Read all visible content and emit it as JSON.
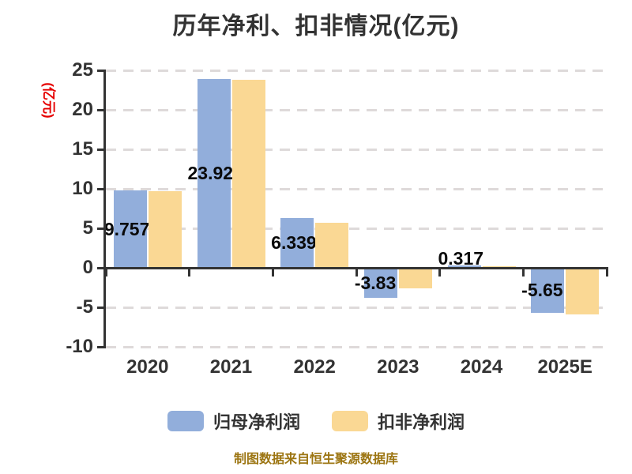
{
  "title": "历年净利、扣非情况(亿元)",
  "y_axis_label": "(亿元)",
  "footer": "制图数据来自恒生聚源数据库",
  "legend": [
    {
      "label": "归母净利润",
      "color": "#92AEDB"
    },
    {
      "label": "扣非净利润",
      "color": "#FAD894"
    }
  ],
  "colors": {
    "bar_blue": "#92AEDB",
    "bar_yellow": "#FAD894",
    "axis": "#333333",
    "grid": "#DEDADA",
    "ylabel_red": "#E60000",
    "footer_gold": "#9C7512",
    "value_label": "#0A0A0A"
  },
  "chart_data": {
    "type": "bar",
    "title": "历年净利、扣非情况(亿元)",
    "ylabel": "(亿元)",
    "categories": [
      "2020",
      "2021",
      "2022",
      "2023",
      "2024",
      "2025E"
    ],
    "series": [
      {
        "name": "归母净利润",
        "color": "#92AEDB",
        "values": [
          9.757,
          23.92,
          6.339,
          -3.83,
          0.317,
          -5.65
        ],
        "labels": [
          "9.757",
          "23.92",
          "6.339",
          "-3.83",
          "0.317",
          "-5.65"
        ]
      },
      {
        "name": "扣非净利润",
        "color": "#FAD894",
        "values": [
          9.7,
          23.8,
          5.7,
          -2.6,
          0.2,
          -5.9
        ]
      }
    ],
    "ylim": [
      -10,
      25
    ],
    "yticks": [
      25,
      20,
      15,
      10,
      5,
      0,
      -5,
      -10
    ],
    "grid": "horizontal-dashed",
    "legend_position": "bottom"
  }
}
